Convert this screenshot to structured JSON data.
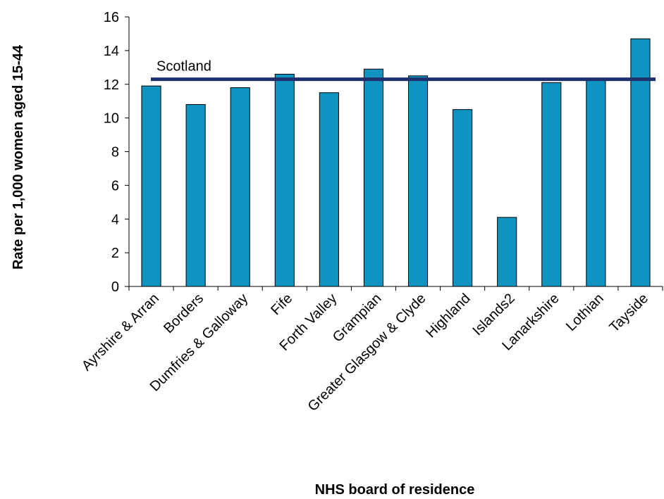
{
  "chart_data": {
    "type": "bar",
    "categories": [
      "Ayrshire & Arran",
      "Borders",
      "Dumfries & Galloway",
      "Fife",
      "Forth Valley",
      "Grampian",
      "Greater Glasgow & Clyde",
      "Highland",
      "Islands2",
      "Lanarkshire",
      "Lothian",
      "Tayside"
    ],
    "values": [
      11.9,
      10.8,
      11.8,
      12.6,
      11.5,
      12.9,
      12.5,
      10.5,
      4.1,
      12.1,
      12.3,
      14.7
    ],
    "reference_line": {
      "label": "Scotland",
      "value": 12.3,
      "color": "#1f2f6b"
    },
    "xlabel": "NHS board of residence",
    "ylabel": "Rate per 1,000 women aged 15-44",
    "ylim": [
      0,
      16
    ],
    "yticks": [
      0,
      2,
      4,
      6,
      8,
      10,
      12,
      14,
      16
    ],
    "bar_color": "#0f93c0",
    "grid": false,
    "legend": "none"
  }
}
